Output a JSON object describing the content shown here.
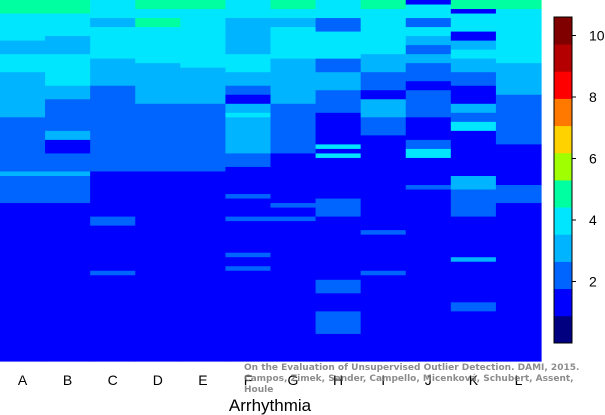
{
  "chart_data": {
    "type": "heatmap",
    "title": "",
    "xlabel": "Arrhythmia",
    "ylabel": "",
    "categories": [
      "A",
      "B",
      "C",
      "D",
      "E",
      "F",
      "G",
      "H",
      "I",
      "J",
      "K",
      "L"
    ],
    "colorbar": {
      "min": 0,
      "max": 10.6,
      "ticks": [
        2,
        4,
        6,
        8,
        10
      ],
      "levels": [
        "#000080",
        "#0000ff",
        "#0064ff",
        "#00b4ff",
        "#00e6ff",
        "#00ffa0",
        "#a0ff00",
        "#ffd200",
        "#ff7800",
        "#ff0000",
        "#b40000",
        "#800000"
      ]
    },
    "rows": 80,
    "columns": [
      {
        "label": "A",
        "segments": [
          {
            "to": 3,
            "value": 4.7
          },
          {
            "to": 5,
            "value": 4.4
          },
          {
            "to": 9,
            "value": 3.9
          },
          {
            "to": 12,
            "value": 3.4
          },
          {
            "to": 16,
            "value": 3.8
          },
          {
            "to": 19,
            "value": 3.5
          },
          {
            "to": 23,
            "value": 3.0
          },
          {
            "to": 26,
            "value": 2.7
          },
          {
            "to": 29,
            "value": 2.2
          },
          {
            "to": 38,
            "value": 1.8
          },
          {
            "to": 39,
            "value": 2.8
          },
          {
            "to": 45,
            "value": 1.8
          },
          {
            "to": 80,
            "value": 1.0
          }
        ]
      },
      {
        "label": "B",
        "segments": [
          {
            "to": 3,
            "value": 4.7
          },
          {
            "to": 5,
            "value": 4.3
          },
          {
            "to": 8,
            "value": 3.9
          },
          {
            "to": 12,
            "value": 3.4
          },
          {
            "to": 16,
            "value": 3.8
          },
          {
            "to": 19,
            "value": 3.6
          },
          {
            "to": 22,
            "value": 3.0
          },
          {
            "to": 29,
            "value": 1.8
          },
          {
            "to": 31,
            "value": 2.8
          },
          {
            "to": 33,
            "value": 1.6
          },
          {
            "to": 34,
            "value": 1.0
          },
          {
            "to": 38,
            "value": 1.8
          },
          {
            "to": 39,
            "value": 2.8
          },
          {
            "to": 45,
            "value": 1.8
          },
          {
            "to": 80,
            "value": 1.0
          }
        ]
      },
      {
        "label": "C",
        "segments": [
          {
            "to": 4,
            "value": 4.4
          },
          {
            "to": 6,
            "value": 3.4
          },
          {
            "to": 9,
            "value": 4.4
          },
          {
            "to": 13,
            "value": 3.9
          },
          {
            "to": 16,
            "value": 3.3
          },
          {
            "to": 19,
            "value": 3.0
          },
          {
            "to": 25,
            "value": 1.8
          },
          {
            "to": 38,
            "value": 1.8
          },
          {
            "to": 40,
            "value": 1.2
          },
          {
            "to": 48,
            "value": 1.0
          },
          {
            "to": 50,
            "value": 1.8
          },
          {
            "to": 60,
            "value": 1.0
          },
          {
            "to": 61,
            "value": 2.0
          },
          {
            "to": 80,
            "value": 1.0
          }
        ]
      },
      {
        "label": "D",
        "segments": [
          {
            "to": 2,
            "value": 4.8
          },
          {
            "to": 4,
            "value": 4.2
          },
          {
            "to": 6,
            "value": 4.5
          },
          {
            "to": 9,
            "value": 3.9
          },
          {
            "to": 14,
            "value": 3.7
          },
          {
            "to": 19,
            "value": 3.2
          },
          {
            "to": 23,
            "value": 2.7
          },
          {
            "to": 38,
            "value": 1.8
          },
          {
            "to": 41,
            "value": 1.6
          },
          {
            "to": 80,
            "value": 1.0
          }
        ]
      },
      {
        "label": "E",
        "segments": [
          {
            "to": 2,
            "value": 4.6
          },
          {
            "to": 4,
            "value": 4.0
          },
          {
            "to": 7,
            "value": 4.4
          },
          {
            "to": 9,
            "value": 3.9
          },
          {
            "to": 15,
            "value": 3.8
          },
          {
            "to": 19,
            "value": 3.2
          },
          {
            "to": 23,
            "value": 2.7
          },
          {
            "to": 38,
            "value": 1.8
          },
          {
            "to": 80,
            "value": 1.0
          }
        ]
      },
      {
        "label": "F",
        "segments": [
          {
            "to": 2,
            "value": 4.4
          },
          {
            "to": 4,
            "value": 3.8
          },
          {
            "to": 6,
            "value": 3.2
          },
          {
            "to": 12,
            "value": 2.7
          },
          {
            "to": 16,
            "value": 3.6
          },
          {
            "to": 19,
            "value": 3.3
          },
          {
            "to": 21,
            "value": 1.8
          },
          {
            "to": 23,
            "value": 1.4
          },
          {
            "to": 25,
            "value": 3.4
          },
          {
            "to": 26,
            "value": 3.9
          },
          {
            "to": 29,
            "value": 2.8
          },
          {
            "to": 34,
            "value": 2.9
          },
          {
            "to": 37,
            "value": 1.8
          },
          {
            "to": 38,
            "value": 1.0
          },
          {
            "to": 40,
            "value": 1.6
          },
          {
            "to": 41,
            "value": 1.4
          },
          {
            "to": 43,
            "value": 1.0
          },
          {
            "to": 44,
            "value": 1.8
          },
          {
            "to": 48,
            "value": 1.0
          },
          {
            "to": 49,
            "value": 1.8
          },
          {
            "to": 52,
            "value": 1.0
          },
          {
            "to": 53,
            "value": 1.6
          },
          {
            "to": 56,
            "value": 1.0
          },
          {
            "to": 57,
            "value": 1.8
          },
          {
            "to": 59,
            "value": 1.0
          },
          {
            "to": 60,
            "value": 1.8
          },
          {
            "to": 80,
            "value": 1.0
          }
        ]
      },
      {
        "label": "G",
        "segments": [
          {
            "to": 2,
            "value": 4.5
          },
          {
            "to": 4,
            "value": 4.0
          },
          {
            "to": 6,
            "value": 3.4
          },
          {
            "to": 9,
            "value": 4.3
          },
          {
            "to": 13,
            "value": 3.8
          },
          {
            "to": 16,
            "value": 3.1
          },
          {
            "to": 19,
            "value": 3.3
          },
          {
            "to": 21,
            "value": 2.8
          },
          {
            "to": 23,
            "value": 2.7
          },
          {
            "to": 28,
            "value": 1.8
          },
          {
            "to": 34,
            "value": 1.8
          },
          {
            "to": 37,
            "value": 1.4
          },
          {
            "to": 38,
            "value": 1.0
          },
          {
            "to": 39,
            "value": 1.6
          },
          {
            "to": 41,
            "value": 1.0
          },
          {
            "to": 42,
            "value": 1.6
          },
          {
            "to": 45,
            "value": 1.0
          },
          {
            "to": 46,
            "value": 1.8
          },
          {
            "to": 48,
            "value": 1.0
          },
          {
            "to": 49,
            "value": 1.8
          },
          {
            "to": 52,
            "value": 1.0
          },
          {
            "to": 53,
            "value": 1.6
          },
          {
            "to": 64,
            "value": 1.0
          },
          {
            "to": 65,
            "value": 1.6
          },
          {
            "to": 80,
            "value": 1.0
          }
        ]
      },
      {
        "label": "H",
        "segments": [
          {
            "to": 2,
            "value": 4.3
          },
          {
            "to": 4,
            "value": 3.8
          },
          {
            "to": 7,
            "value": 2.0
          },
          {
            "to": 9,
            "value": 3.9
          },
          {
            "to": 11,
            "value": 4.2
          },
          {
            "to": 13,
            "value": 3.6
          },
          {
            "to": 16,
            "value": 2.4
          },
          {
            "to": 18,
            "value": 3.0
          },
          {
            "to": 20,
            "value": 2.8
          },
          {
            "to": 22,
            "value": 1.8
          },
          {
            "to": 25,
            "value": 2.4
          },
          {
            "to": 28,
            "value": 1.6
          },
          {
            "to": 30,
            "value": 1.0
          },
          {
            "to": 32,
            "value": 1.6
          },
          {
            "to": 33,
            "value": 4.4
          },
          {
            "to": 34,
            "value": 1.4
          },
          {
            "to": 35,
            "value": 3.8
          },
          {
            "to": 38,
            "value": 1.2
          },
          {
            "to": 44,
            "value": 1.0
          },
          {
            "to": 48,
            "value": 1.8
          },
          {
            "to": 51,
            "value": 1.0
          },
          {
            "to": 52,
            "value": 1.6
          },
          {
            "to": 54,
            "value": 1.0
          },
          {
            "to": 55,
            "value": 1.6
          },
          {
            "to": 59,
            "value": 1.0
          },
          {
            "to": 60,
            "value": 1.6
          },
          {
            "to": 62,
            "value": 1.0
          },
          {
            "to": 65,
            "value": 1.8
          },
          {
            "to": 66,
            "value": 1.0
          },
          {
            "to": 67,
            "value": 1.6
          },
          {
            "to": 69,
            "value": 1.0
          },
          {
            "to": 74,
            "value": 2.0
          },
          {
            "to": 80,
            "value": 1.0
          }
        ]
      },
      {
        "label": "I",
        "segments": [
          {
            "to": 2,
            "value": 4.6
          },
          {
            "to": 4,
            "value": 4.2
          },
          {
            "to": 6,
            "value": 3.6
          },
          {
            "to": 9,
            "value": 4.4
          },
          {
            "to": 12,
            "value": 3.8
          },
          {
            "to": 14,
            "value": 3.3
          },
          {
            "to": 16,
            "value": 2.8
          },
          {
            "to": 18,
            "value": 1.8
          },
          {
            "to": 20,
            "value": 2.6
          },
          {
            "to": 22,
            "value": 1.6
          },
          {
            "to": 26,
            "value": 2.8
          },
          {
            "to": 30,
            "value": 2.4
          },
          {
            "to": 33,
            "value": 1.6
          },
          {
            "to": 36,
            "value": 1.6
          },
          {
            "to": 41,
            "value": 1.4
          },
          {
            "to": 48,
            "value": 1.0
          },
          {
            "to": 50,
            "value": 1.6
          },
          {
            "to": 51,
            "value": 1.0
          },
          {
            "to": 52,
            "value": 1.8
          },
          {
            "to": 60,
            "value": 1.0
          },
          {
            "to": 61,
            "value": 1.8
          },
          {
            "to": 80,
            "value": 1.0
          }
        ]
      },
      {
        "label": "J",
        "segments": [
          {
            "to": 1,
            "value": 1.4
          },
          {
            "to": 2,
            "value": 4.4
          },
          {
            "to": 4,
            "value": 3.6
          },
          {
            "to": 6,
            "value": 2.6
          },
          {
            "to": 8,
            "value": 4.2
          },
          {
            "to": 10,
            "value": 3.4
          },
          {
            "to": 12,
            "value": 2.6
          },
          {
            "to": 14,
            "value": 3.0
          },
          {
            "to": 16,
            "value": 1.8
          },
          {
            "to": 18,
            "value": 2.4
          },
          {
            "to": 20,
            "value": 1.6
          },
          {
            "to": 23,
            "value": 2.6
          },
          {
            "to": 26,
            "value": 1.8
          },
          {
            "to": 28,
            "value": 1.4
          },
          {
            "to": 31,
            "value": 1.0
          },
          {
            "to": 33,
            "value": 2.4
          },
          {
            "to": 35,
            "value": 3.8
          },
          {
            "to": 36,
            "value": 1.6
          },
          {
            "to": 38,
            "value": 1.0
          },
          {
            "to": 39,
            "value": 1.6
          },
          {
            "to": 41,
            "value": 1.0
          },
          {
            "to": 42,
            "value": 2.6
          },
          {
            "to": 46,
            "value": 1.0
          },
          {
            "to": 47,
            "value": 1.6
          },
          {
            "to": 50,
            "value": 1.0
          },
          {
            "to": 51,
            "value": 1.6
          },
          {
            "to": 53,
            "value": 1.0
          },
          {
            "to": 54,
            "value": 1.6
          },
          {
            "to": 56,
            "value": 1.0
          },
          {
            "to": 57,
            "value": 1.4
          },
          {
            "to": 80,
            "value": 1.0
          }
        ]
      },
      {
        "label": "K",
        "segments": [
          {
            "to": 2,
            "value": 4.6
          },
          {
            "to": 3,
            "value": 1.6
          },
          {
            "to": 5,
            "value": 4.4
          },
          {
            "to": 7,
            "value": 3.8
          },
          {
            "to": 9,
            "value": 1.6
          },
          {
            "to": 11,
            "value": 2.8
          },
          {
            "to": 13,
            "value": 3.6
          },
          {
            "to": 16,
            "value": 3.0
          },
          {
            "to": 19,
            "value": 2.4
          },
          {
            "to": 21,
            "value": 1.6
          },
          {
            "to": 23,
            "value": 1.2
          },
          {
            "to": 25,
            "value": 3.4
          },
          {
            "to": 27,
            "value": 2.6
          },
          {
            "to": 29,
            "value": 4.4
          },
          {
            "to": 32,
            "value": 1.6
          },
          {
            "to": 34,
            "value": 1.0
          },
          {
            "to": 36,
            "value": 1.2
          },
          {
            "to": 39,
            "value": 1.6
          },
          {
            "to": 42,
            "value": 2.8
          },
          {
            "to": 45,
            "value": 2.4
          },
          {
            "to": 48,
            "value": 1.8
          },
          {
            "to": 56,
            "value": 1.0
          },
          {
            "to": 57,
            "value": 1.6
          },
          {
            "to": 58,
            "value": 3.0
          },
          {
            "to": 67,
            "value": 1.0
          },
          {
            "to": 69,
            "value": 1.8
          },
          {
            "to": 80,
            "value": 1.0
          }
        ]
      },
      {
        "label": "L",
        "segments": [
          {
            "to": 2,
            "value": 4.6
          },
          {
            "to": 4,
            "value": 4.3
          },
          {
            "to": 6,
            "value": 3.9
          },
          {
            "to": 9,
            "value": 4.2
          },
          {
            "to": 11,
            "value": 3.6
          },
          {
            "to": 14,
            "value": 3.9
          },
          {
            "to": 17,
            "value": 3.2
          },
          {
            "to": 19,
            "value": 3.0
          },
          {
            "to": 21,
            "value": 2.8
          },
          {
            "to": 26,
            "value": 1.8
          },
          {
            "to": 32,
            "value": 1.8
          },
          {
            "to": 35,
            "value": 1.6
          },
          {
            "to": 37,
            "value": 1.2
          },
          {
            "to": 41,
            "value": 1.0
          },
          {
            "to": 45,
            "value": 1.8
          },
          {
            "to": 80,
            "value": 1.0
          }
        ]
      }
    ]
  },
  "credit": {
    "line1": "On the Evaluation of Unsupervised Outlier Detection. DAMI, 2015.",
    "line2": "Campos, Zimek, Sander, Campello, Micenková, Schubert, Assent, Houle"
  }
}
